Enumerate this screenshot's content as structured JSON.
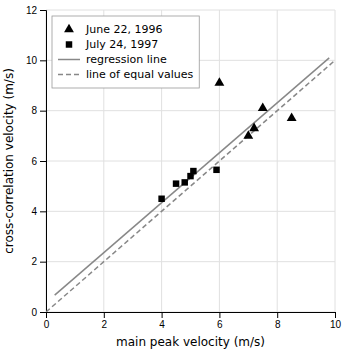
{
  "chart_data": {
    "type": "scatter",
    "xlabel": "main peak velocity (m/s)",
    "ylabel": "cross-correlation velocity (m/s)",
    "xlim": [
      0,
      10
    ],
    "ylim": [
      0,
      12
    ],
    "xticks": [
      0,
      2,
      4,
      6,
      8,
      10
    ],
    "yticks": [
      0,
      2,
      4,
      6,
      8,
      10,
      12
    ],
    "grid": true,
    "legend": "upper left",
    "series": [
      {
        "name": "June 22, 1996",
        "type": "scatter",
        "marker": "triangle",
        "color": "#000000",
        "x": [
          6.0,
          7.0,
          7.5,
          7.2,
          8.5
        ],
        "values": [
          9.1,
          7.0,
          8.1,
          7.3,
          7.7
        ]
      },
      {
        "name": "July 24, 1997",
        "type": "scatter",
        "marker": "square",
        "color": "#000000",
        "x": [
          4.0,
          4.5,
          4.8,
          5.0,
          5.1,
          5.9
        ],
        "values": [
          4.5,
          5.1,
          5.15,
          5.4,
          5.6,
          5.65
        ]
      },
      {
        "name": "regression line",
        "type": "line",
        "line_style": "solid",
        "color": "#888888",
        "x": [
          0.3,
          9.8
        ],
        "values": [
          0.67,
          10.1
        ]
      },
      {
        "name": "line of equal values",
        "type": "line",
        "line_style": "dashed",
        "color": "#888888",
        "x": [
          0.0,
          10.0
        ],
        "values": [
          0.0,
          10.0
        ]
      }
    ]
  }
}
